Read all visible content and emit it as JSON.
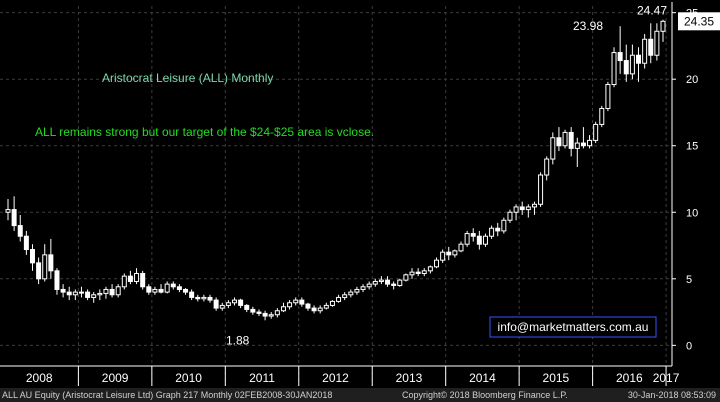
{
  "chart_data": {
    "type": "candlestick",
    "title": "Aristocrat Leisure (ALL) Monthly",
    "annotation": "ALL remains strong but our target of the $24-$25 area is vclose.",
    "watermark": "info@marketmatters.com.au",
    "y_ticks": [
      0,
      5,
      10,
      15,
      20,
      25
    ],
    "ylim": [
      -0.5,
      25.5
    ],
    "x_ticks": [
      "2008",
      "2009",
      "2010",
      "2011",
      "2012",
      "2013",
      "2014",
      "2015",
      "2016",
      "2017"
    ],
    "grid": true,
    "y_axis_side": "right",
    "last_price": "24.35",
    "price_labels": [
      {
        "text": "24.47",
        "value": 24.47
      },
      {
        "text": "23.98",
        "value": 23.98
      },
      {
        "text": "1.88",
        "value": 1.88
      }
    ],
    "ohlc": [
      [
        10.0,
        11.0,
        9.4,
        10.2
      ],
      [
        10.2,
        11.2,
        8.6,
        9.0
      ],
      [
        9.0,
        9.8,
        7.8,
        8.2
      ],
      [
        8.2,
        8.6,
        6.8,
        7.2
      ],
      [
        7.2,
        7.6,
        5.6,
        6.2
      ],
      [
        6.2,
        6.6,
        4.6,
        5.0
      ],
      [
        5.0,
        7.6,
        4.8,
        6.8
      ],
      [
        6.8,
        8.0,
        5.0,
        5.6
      ],
      [
        5.6,
        5.8,
        3.8,
        4.2
      ],
      [
        4.2,
        4.6,
        3.6,
        4.0
      ],
      [
        4.0,
        4.4,
        3.4,
        3.8
      ],
      [
        3.8,
        4.2,
        3.4,
        4.0
      ],
      [
        4.0,
        4.4,
        3.6,
        4.0
      ],
      [
        4.0,
        4.2,
        3.4,
        3.6
      ],
      [
        3.6,
        4.0,
        3.2,
        3.8
      ],
      [
        3.8,
        4.2,
        3.4,
        3.9
      ],
      [
        3.9,
        4.4,
        3.5,
        4.2
      ],
      [
        4.2,
        4.6,
        3.6,
        3.8
      ],
      [
        3.8,
        4.6,
        3.6,
        4.4
      ],
      [
        4.4,
        5.4,
        4.2,
        5.2
      ],
      [
        5.2,
        5.6,
        4.6,
        4.8
      ],
      [
        4.8,
        5.8,
        4.6,
        5.4
      ],
      [
        5.4,
        5.6,
        4.2,
        4.4
      ],
      [
        4.4,
        4.6,
        3.8,
        4.0
      ],
      [
        4.0,
        4.4,
        3.8,
        4.2
      ],
      [
        4.2,
        4.6,
        3.9,
        4.0
      ],
      [
        4.0,
        4.8,
        3.9,
        4.6
      ],
      [
        4.6,
        4.8,
        4.2,
        4.4
      ],
      [
        4.4,
        4.6,
        4.0,
        4.2
      ],
      [
        4.2,
        4.3,
        3.8,
        4.0
      ],
      [
        4.0,
        4.2,
        3.4,
        3.6
      ],
      [
        3.6,
        3.8,
        3.3,
        3.5
      ],
      [
        3.5,
        3.8,
        3.3,
        3.6
      ],
      [
        3.6,
        3.8,
        3.2,
        3.4
      ],
      [
        3.4,
        3.6,
        2.6,
        2.8
      ],
      [
        2.8,
        3.2,
        2.6,
        3.0
      ],
      [
        3.0,
        3.4,
        2.8,
        3.2
      ],
      [
        3.2,
        3.6,
        3.0,
        3.4
      ],
      [
        3.4,
        3.5,
        2.8,
        3.0
      ],
      [
        3.0,
        3.1,
        2.5,
        2.7
      ],
      [
        2.7,
        2.9,
        2.3,
        2.5
      ],
      [
        2.5,
        2.7,
        2.2,
        2.4
      ],
      [
        2.4,
        2.6,
        1.88,
        2.2
      ],
      [
        2.2,
        2.5,
        2.0,
        2.3
      ],
      [
        2.3,
        2.8,
        2.1,
        2.6
      ],
      [
        2.6,
        3.2,
        2.5,
        2.9
      ],
      [
        2.9,
        3.4,
        2.7,
        3.2
      ],
      [
        3.2,
        3.6,
        3.0,
        3.4
      ],
      [
        3.4,
        3.6,
        2.9,
        3.1
      ],
      [
        3.1,
        3.2,
        2.6,
        2.8
      ],
      [
        2.8,
        3.0,
        2.4,
        2.6
      ],
      [
        2.6,
        3.0,
        2.4,
        2.8
      ],
      [
        2.8,
        3.2,
        2.7,
        3.0
      ],
      [
        3.0,
        3.4,
        2.9,
        3.3
      ],
      [
        3.3,
        3.8,
        3.2,
        3.6
      ],
      [
        3.6,
        4.0,
        3.4,
        3.8
      ],
      [
        3.8,
        4.2,
        3.6,
        4.0
      ],
      [
        4.0,
        4.4,
        3.8,
        4.2
      ],
      [
        4.2,
        4.6,
        4.0,
        4.4
      ],
      [
        4.4,
        4.8,
        4.2,
        4.6
      ],
      [
        4.6,
        5.0,
        4.4,
        4.8
      ],
      [
        4.8,
        5.2,
        4.6,
        4.9
      ],
      [
        4.9,
        5.2,
        4.4,
        4.6
      ],
      [
        4.6,
        4.8,
        4.2,
        4.5
      ],
      [
        4.5,
        5.0,
        4.4,
        4.9
      ],
      [
        4.9,
        5.4,
        4.8,
        5.3
      ],
      [
        5.3,
        5.8,
        5.0,
        5.5
      ],
      [
        5.5,
        5.8,
        5.2,
        5.4
      ],
      [
        5.4,
        5.8,
        5.2,
        5.6
      ],
      [
        5.6,
        6.0,
        5.4,
        5.9
      ],
      [
        5.9,
        6.6,
        5.8,
        6.4
      ],
      [
        6.4,
        7.2,
        6.2,
        7.0
      ],
      [
        7.0,
        7.4,
        6.4,
        6.8
      ],
      [
        6.8,
        7.2,
        6.6,
        7.1
      ],
      [
        7.1,
        7.8,
        7.0,
        7.6
      ],
      [
        7.6,
        8.6,
        7.4,
        8.4
      ],
      [
        8.4,
        8.8,
        7.8,
        8.2
      ],
      [
        8.2,
        8.6,
        7.2,
        7.6
      ],
      [
        7.6,
        8.4,
        7.4,
        8.2
      ],
      [
        8.2,
        9.0,
        8.0,
        8.8
      ],
      [
        8.8,
        9.2,
        8.2,
        8.6
      ],
      [
        8.6,
        9.6,
        8.4,
        9.4
      ],
      [
        9.4,
        10.2,
        9.2,
        10.0
      ],
      [
        10.0,
        10.6,
        9.4,
        10.4
      ],
      [
        10.4,
        10.8,
        9.8,
        10.2
      ],
      [
        10.2,
        10.6,
        9.6,
        10.4
      ],
      [
        10.4,
        10.8,
        9.8,
        10.6
      ],
      [
        10.6,
        13.0,
        10.4,
        12.8
      ],
      [
        12.8,
        14.2,
        12.4,
        14.0
      ],
      [
        14.0,
        16.0,
        13.6,
        15.6
      ],
      [
        15.6,
        16.4,
        14.6,
        15.0
      ],
      [
        15.0,
        16.2,
        14.8,
        16.0
      ],
      [
        16.0,
        16.4,
        14.2,
        14.8
      ],
      [
        14.8,
        15.6,
        13.4,
        15.2
      ],
      [
        15.2,
        16.4,
        14.8,
        15.0
      ],
      [
        15.0,
        15.8,
        14.8,
        15.4
      ],
      [
        15.4,
        16.8,
        15.2,
        16.6
      ],
      [
        16.6,
        18.0,
        16.4,
        17.8
      ],
      [
        17.8,
        19.8,
        17.6,
        19.6
      ],
      [
        19.6,
        22.4,
        19.4,
        22.0
      ],
      [
        22.0,
        23.98,
        20.4,
        21.4
      ],
      [
        21.4,
        22.6,
        19.8,
        20.4
      ],
      [
        20.4,
        22.6,
        20.0,
        21.8
      ],
      [
        21.8,
        22.4,
        19.8,
        21.2
      ],
      [
        21.2,
        23.4,
        20.8,
        23.0
      ],
      [
        23.0,
        24.2,
        21.2,
        21.8
      ],
      [
        21.8,
        24.2,
        21.4,
        23.6
      ],
      [
        23.6,
        24.47,
        22.8,
        24.35
      ]
    ]
  },
  "footer": {
    "left": "ALL AU Equity (Aristocrat Leisure Ltd) Graph 217  Monthly 02FEB2008-30JAN2018",
    "center": "Copyright© 2018 Bloomberg Finance L.P.",
    "right": "30-Jan-2018 08:53:09"
  },
  "colors": {
    "background": "#000000",
    "candle": "#ffffff",
    "grid": "#3c3c3c",
    "annotation": "#22dd22",
    "title": "#7cd6a8",
    "axis_text": "#ffffff",
    "box": "#3355ff"
  }
}
